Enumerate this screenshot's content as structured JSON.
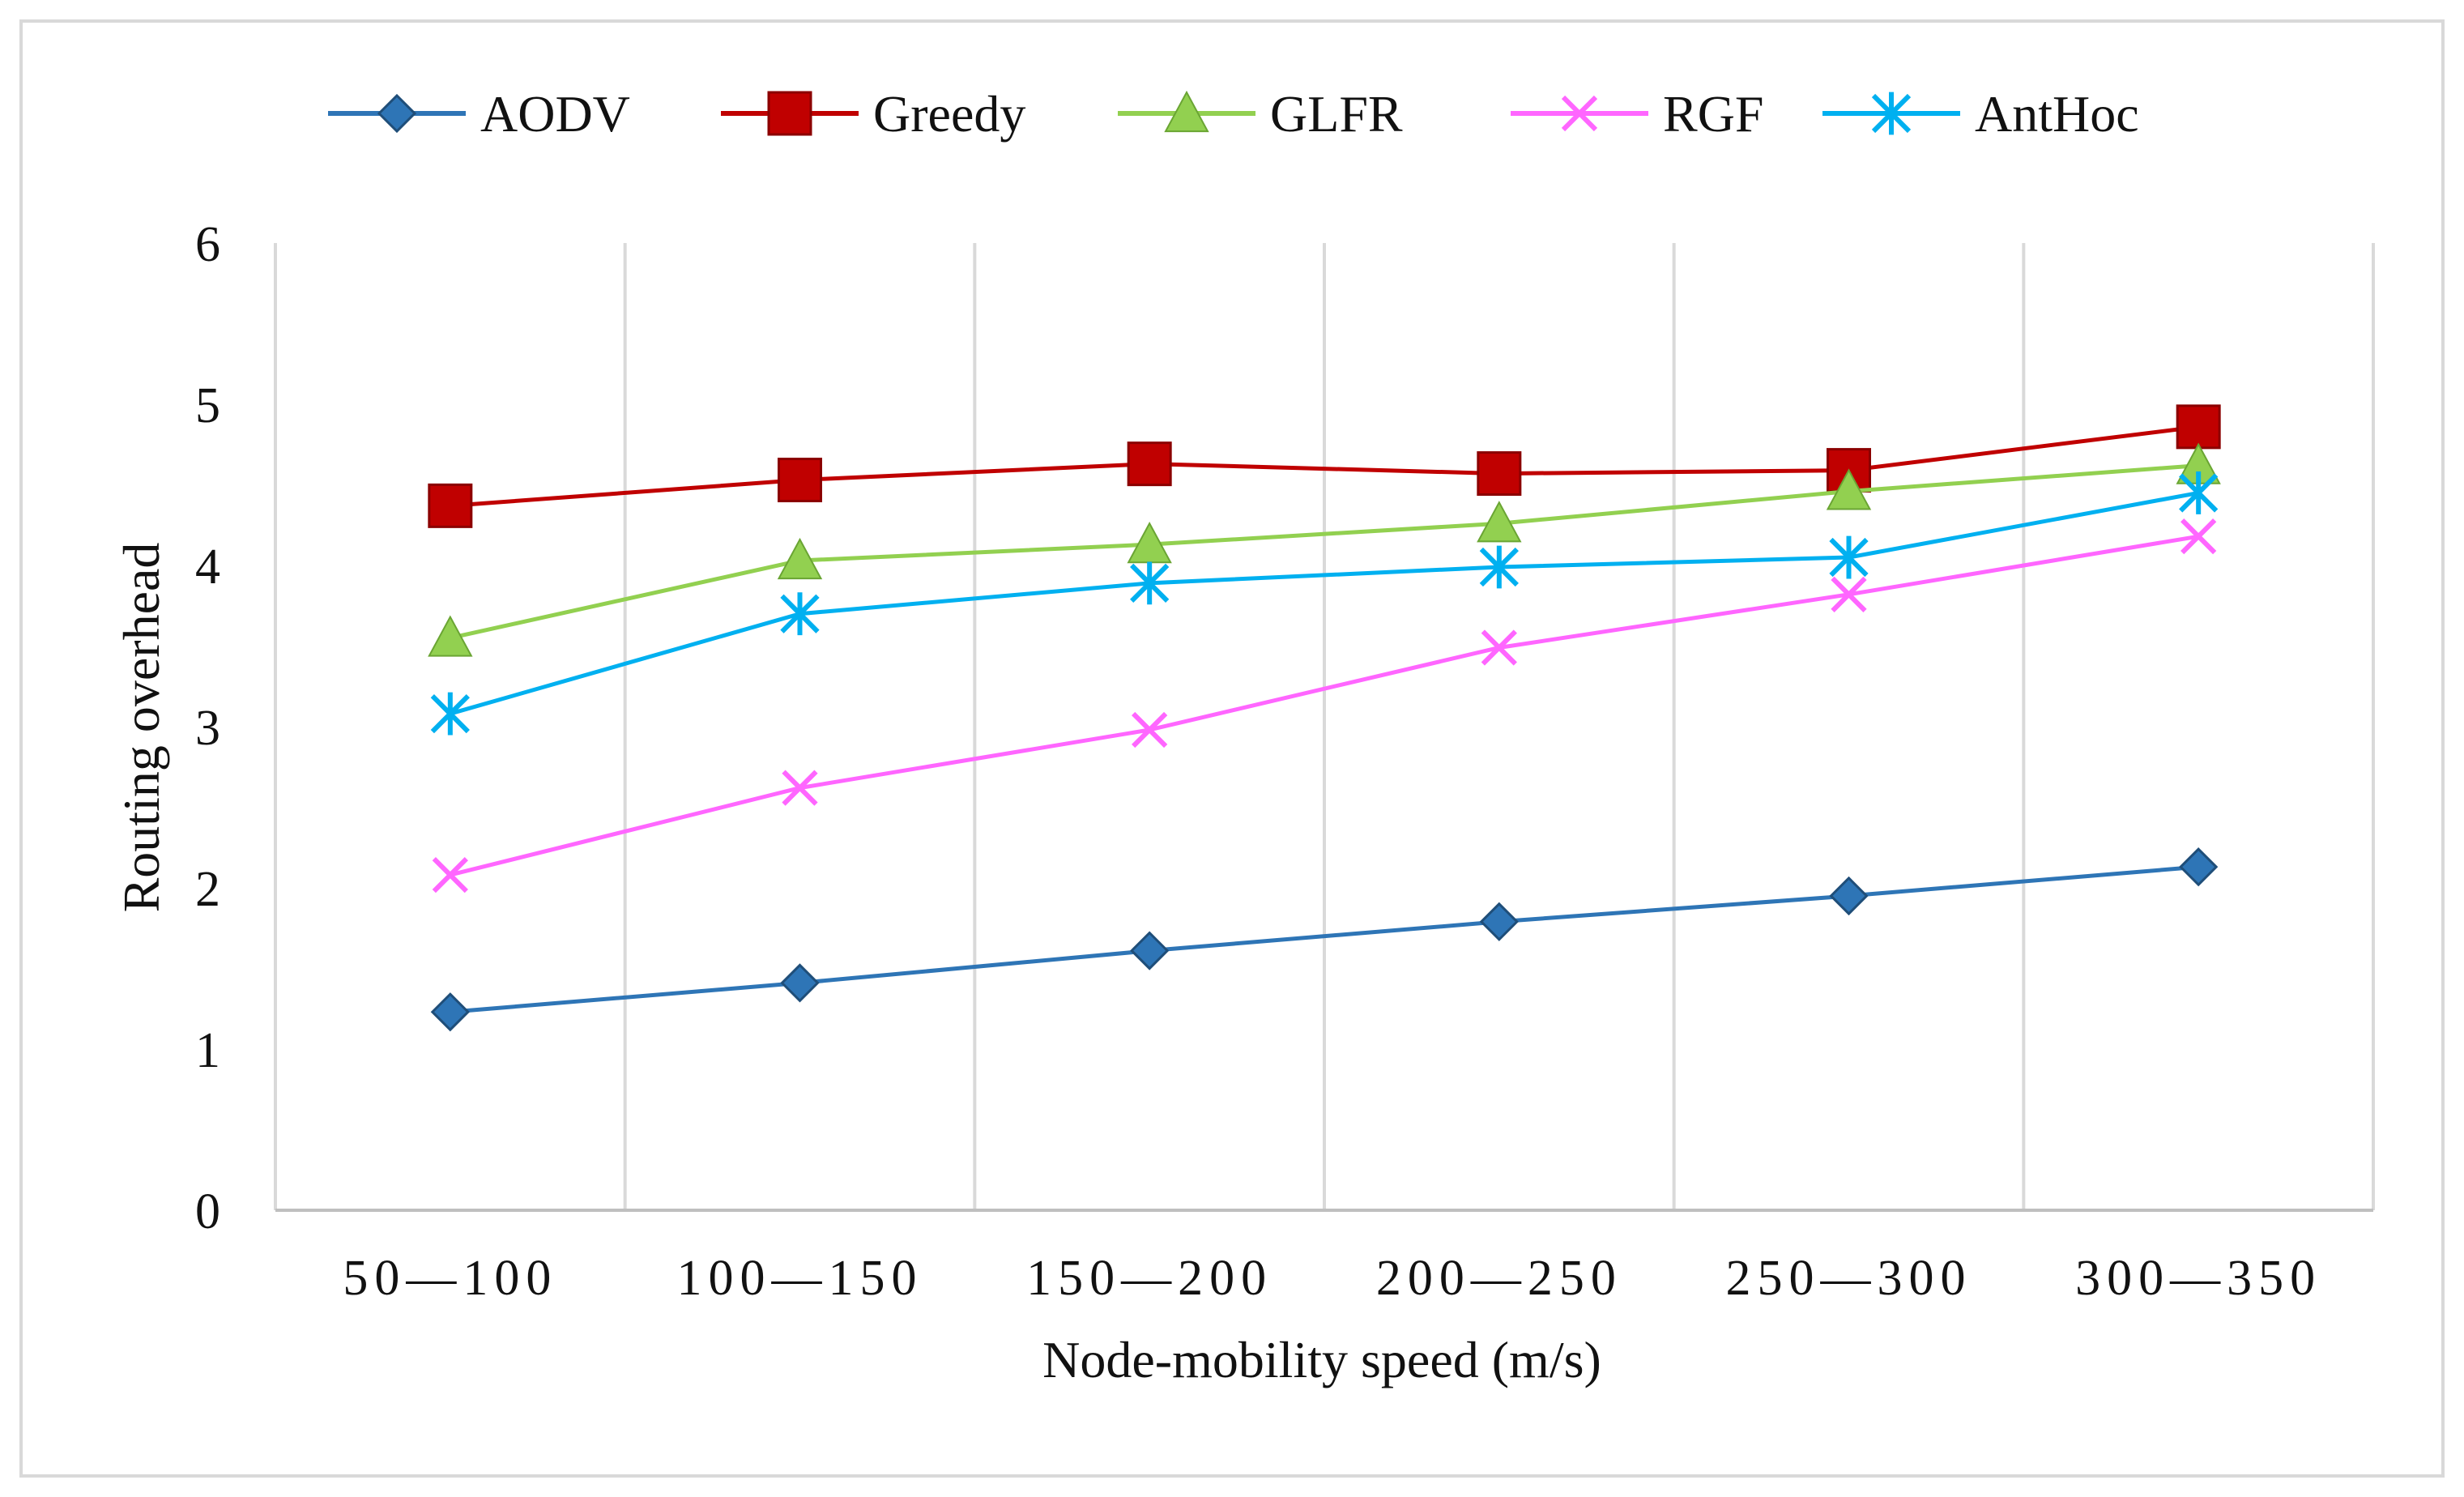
{
  "chart_data": {
    "type": "line",
    "title": "",
    "xlabel": "Node-mobility  speed (m/s)",
    "ylabel": "Routing overhead",
    "categories": [
      "50—100",
      "100—150",
      "150—200",
      "200—250",
      "250—300",
      "300—350"
    ],
    "ylim": [
      0,
      6
    ],
    "yticks": [
      "0",
      "1",
      "2",
      "3",
      "4",
      "5",
      "6"
    ],
    "grid": "vertical",
    "legend_position": "top",
    "series": [
      {
        "name": "AODV",
        "color": "#2e75b6",
        "marker": "diamond",
        "values": [
          1.23,
          1.41,
          1.61,
          1.79,
          1.95,
          2.13
        ]
      },
      {
        "name": "Greedy",
        "color": "#c00000",
        "marker": "square",
        "values": [
          4.37,
          4.53,
          4.63,
          4.57,
          4.59,
          4.86
        ]
      },
      {
        "name": "GLFR",
        "color": "#92d050",
        "marker": "triangle",
        "values": [
          3.55,
          4.03,
          4.13,
          4.26,
          4.46,
          4.62
        ]
      },
      {
        "name": "RGF",
        "color": "#ff66ff",
        "marker": "x",
        "values": [
          2.08,
          2.62,
          2.98,
          3.49,
          3.82,
          4.18
        ]
      },
      {
        "name": "AntHoc",
        "color": "#00b0f0",
        "marker": "asterisk",
        "values": [
          3.08,
          3.7,
          3.89,
          3.99,
          4.05,
          4.45
        ]
      }
    ]
  }
}
